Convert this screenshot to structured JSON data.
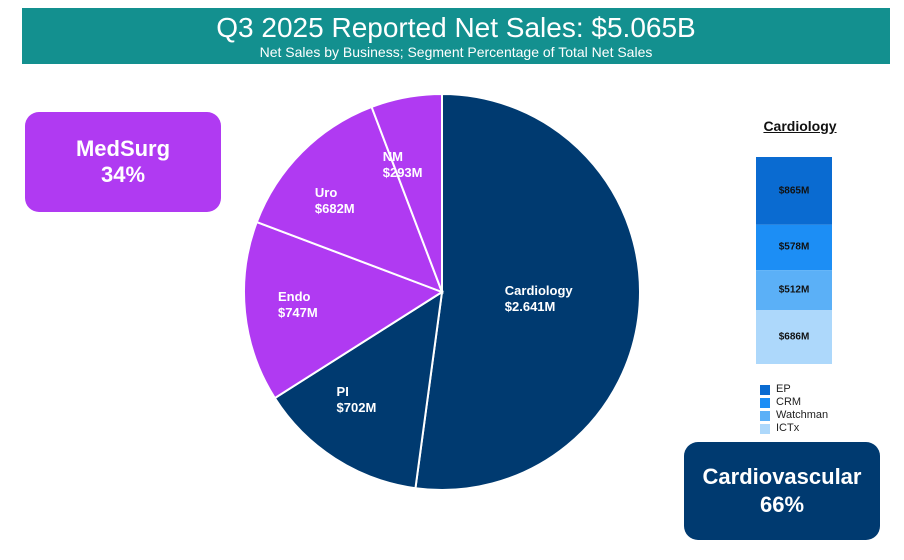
{
  "header": {
    "title": "Q3 2025 Reported Net Sales: $5.065B",
    "subtitle": "Net Sales by Business; Segment Percentage of Total Net Sales"
  },
  "segments": {
    "medsurg": {
      "name": "MedSurg",
      "pct": "34%"
    },
    "cardiovascular": {
      "name": "Cardiovascular",
      "pct": "66%"
    }
  },
  "colors": {
    "banner": "#13908F",
    "medsurg": "#B03AF2",
    "cardiovascular": "#003A70",
    "ep": "#0A6BD1",
    "crm": "#1C8EF5",
    "watchman": "#5BB0F7",
    "ictx": "#ADD8FB"
  },
  "chart_data": [
    {
      "type": "pie",
      "slices": [
        {
          "name": "Cardiology",
          "value_label": "$2.641M",
          "value": 2641,
          "group": "cardiovascular"
        },
        {
          "name": "PI",
          "value_label": "$702M",
          "value": 702,
          "group": "cardiovascular"
        },
        {
          "name": "Endo",
          "value_label": "$747M",
          "value": 747,
          "group": "medsurg"
        },
        {
          "name": "Uro",
          "value_label": "$682M",
          "value": 682,
          "group": "medsurg"
        },
        {
          "name": "NM",
          "value_label": "$293M",
          "value": 293,
          "group": "medsurg"
        }
      ]
    },
    {
      "type": "bar",
      "stacked": true,
      "title": "Cardiology",
      "series": [
        {
          "name": "EP",
          "value": 865,
          "value_label": "$865M"
        },
        {
          "name": "CRM",
          "value": 578,
          "value_label": "$578M"
        },
        {
          "name": "Watchman",
          "value": 512,
          "value_label": "$512M"
        },
        {
          "name": "ICTx",
          "value": 686,
          "value_label": "$686M"
        }
      ],
      "legend": "bottom"
    }
  ]
}
